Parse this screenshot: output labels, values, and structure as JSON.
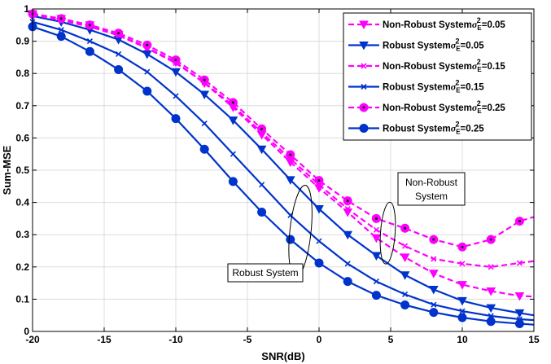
{
  "chart_data": {
    "type": "line",
    "xlabel": "SNR(dB)",
    "ylabel": "Sum-MSE",
    "xlim": [
      -20,
      15
    ],
    "ylim": [
      0,
      1
    ],
    "xticks": [
      -20,
      -15,
      -10,
      -5,
      0,
      5,
      10,
      15
    ],
    "yticks": [
      0,
      0.1,
      0.2,
      0.3,
      0.4,
      0.5,
      0.6,
      0.7,
      0.8,
      0.9,
      1
    ],
    "grid": true,
    "legend_position": "top-right",
    "x": [
      -20,
      -18,
      -16,
      -14,
      -12,
      -10,
      -8,
      -6,
      -4,
      -2,
      0,
      2,
      4,
      6,
      8,
      10,
      12,
      14,
      15
    ],
    "series": [
      {
        "name": "Non-Robust System",
        "sigma_label": "=0.05",
        "color": "#ff00ff",
        "style": "dashed",
        "marker": "triangle-down",
        "values": [
          0.985,
          0.97,
          0.95,
          0.92,
          0.88,
          0.835,
          0.77,
          0.695,
          0.61,
          0.525,
          0.445,
          0.37,
          0.29,
          0.23,
          0.18,
          0.145,
          0.125,
          0.11,
          0.108
        ]
      },
      {
        "name": "Robust System",
        "sigma_label": "=0.05",
        "color": "#0033cc",
        "style": "solid",
        "marker": "triangle-down",
        "values": [
          0.978,
          0.96,
          0.935,
          0.905,
          0.86,
          0.805,
          0.735,
          0.655,
          0.565,
          0.47,
          0.38,
          0.3,
          0.235,
          0.175,
          0.13,
          0.095,
          0.073,
          0.057,
          0.05
        ]
      },
      {
        "name": "Non-Robust System",
        "sigma_label": "=0.15",
        "color": "#ff00ff",
        "style": "dashed",
        "marker": "x",
        "values": [
          0.982,
          0.965,
          0.945,
          0.918,
          0.878,
          0.832,
          0.772,
          0.7,
          0.617,
          0.535,
          0.455,
          0.38,
          0.315,
          0.265,
          0.225,
          0.21,
          0.2,
          0.212,
          0.218
        ]
      },
      {
        "name": "Robust System",
        "sigma_label": "=0.15",
        "color": "#0033cc",
        "style": "solid",
        "marker": "x",
        "values": [
          0.96,
          0.935,
          0.9,
          0.86,
          0.805,
          0.73,
          0.645,
          0.55,
          0.455,
          0.36,
          0.28,
          0.21,
          0.155,
          0.115,
          0.083,
          0.063,
          0.048,
          0.038,
          0.035
        ]
      },
      {
        "name": "Non-Robust System",
        "sigma_label": "=0.25",
        "color": "#ff00ff",
        "style": "dashed",
        "marker": "circle-dot",
        "values": [
          0.985,
          0.97,
          0.95,
          0.925,
          0.888,
          0.842,
          0.78,
          0.71,
          0.628,
          0.548,
          0.468,
          0.405,
          0.35,
          0.32,
          0.285,
          0.262,
          0.285,
          0.342,
          0.355
        ]
      },
      {
        "name": "Robust System",
        "sigma_label": "=0.25",
        "color": "#0033cc",
        "style": "solid",
        "marker": "circle",
        "values": [
          0.945,
          0.915,
          0.868,
          0.812,
          0.745,
          0.66,
          0.565,
          0.465,
          0.37,
          0.285,
          0.212,
          0.155,
          0.112,
          0.082,
          0.059,
          0.043,
          0.031,
          0.024,
          0.021
        ]
      }
    ],
    "annotations": [
      {
        "id": "non-robust",
        "lines": [
          "Non-Robust",
          "System"
        ]
      },
      {
        "id": "robust",
        "lines": [
          "Robust System"
        ]
      }
    ]
  }
}
